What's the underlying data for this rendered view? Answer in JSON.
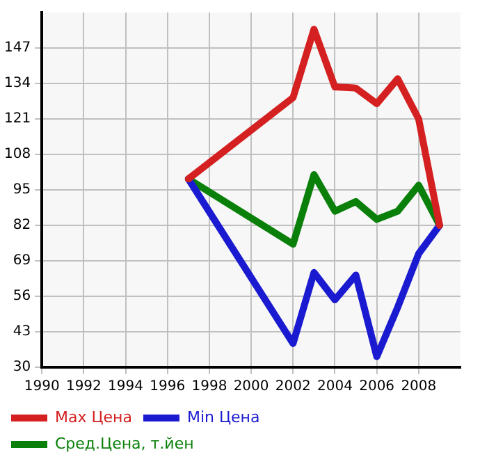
{
  "chart_data": {
    "type": "line",
    "xlim": [
      1990,
      2010
    ],
    "xticks": [
      1990,
      1992,
      1994,
      1996,
      1998,
      2000,
      2002,
      2004,
      2006,
      2008
    ],
    "ylim": [
      30,
      160
    ],
    "yticks": [
      30,
      43,
      56,
      69,
      82,
      95,
      108,
      121,
      134,
      147
    ],
    "grid": true,
    "legend": "bottom",
    "marker": "none",
    "line_style": "solid",
    "series": [
      {
        "name": "Max Цена",
        "color": "#d42020",
        "x": [
          1997,
          2002,
          2003,
          2004,
          2005,
          2006,
          2007,
          2008,
          2009
        ],
        "values": [
          99,
          128.8,
          153.9,
          132.7,
          132.3,
          126.6,
          135.7,
          121,
          82
        ]
      },
      {
        "name": "Min Цена",
        "color": "#1a1ad0",
        "x": [
          1997,
          2002,
          2003,
          2004,
          2005,
          2006,
          2007,
          2008,
          2009
        ],
        "values": [
          99,
          38.7,
          64.7,
          54.7,
          63.8,
          33.9,
          52,
          71.6,
          82
        ]
      },
      {
        "name": "Сред.Цена, т.йен",
        "color": "#0a800a",
        "x": [
          1997,
          2002,
          2003,
          2004,
          2005,
          2006,
          2007,
          2008,
          2009
        ],
        "values": [
          99,
          75.1,
          100.6,
          87.2,
          90.7,
          84.2,
          87.2,
          96.7,
          82
        ]
      }
    ]
  }
}
